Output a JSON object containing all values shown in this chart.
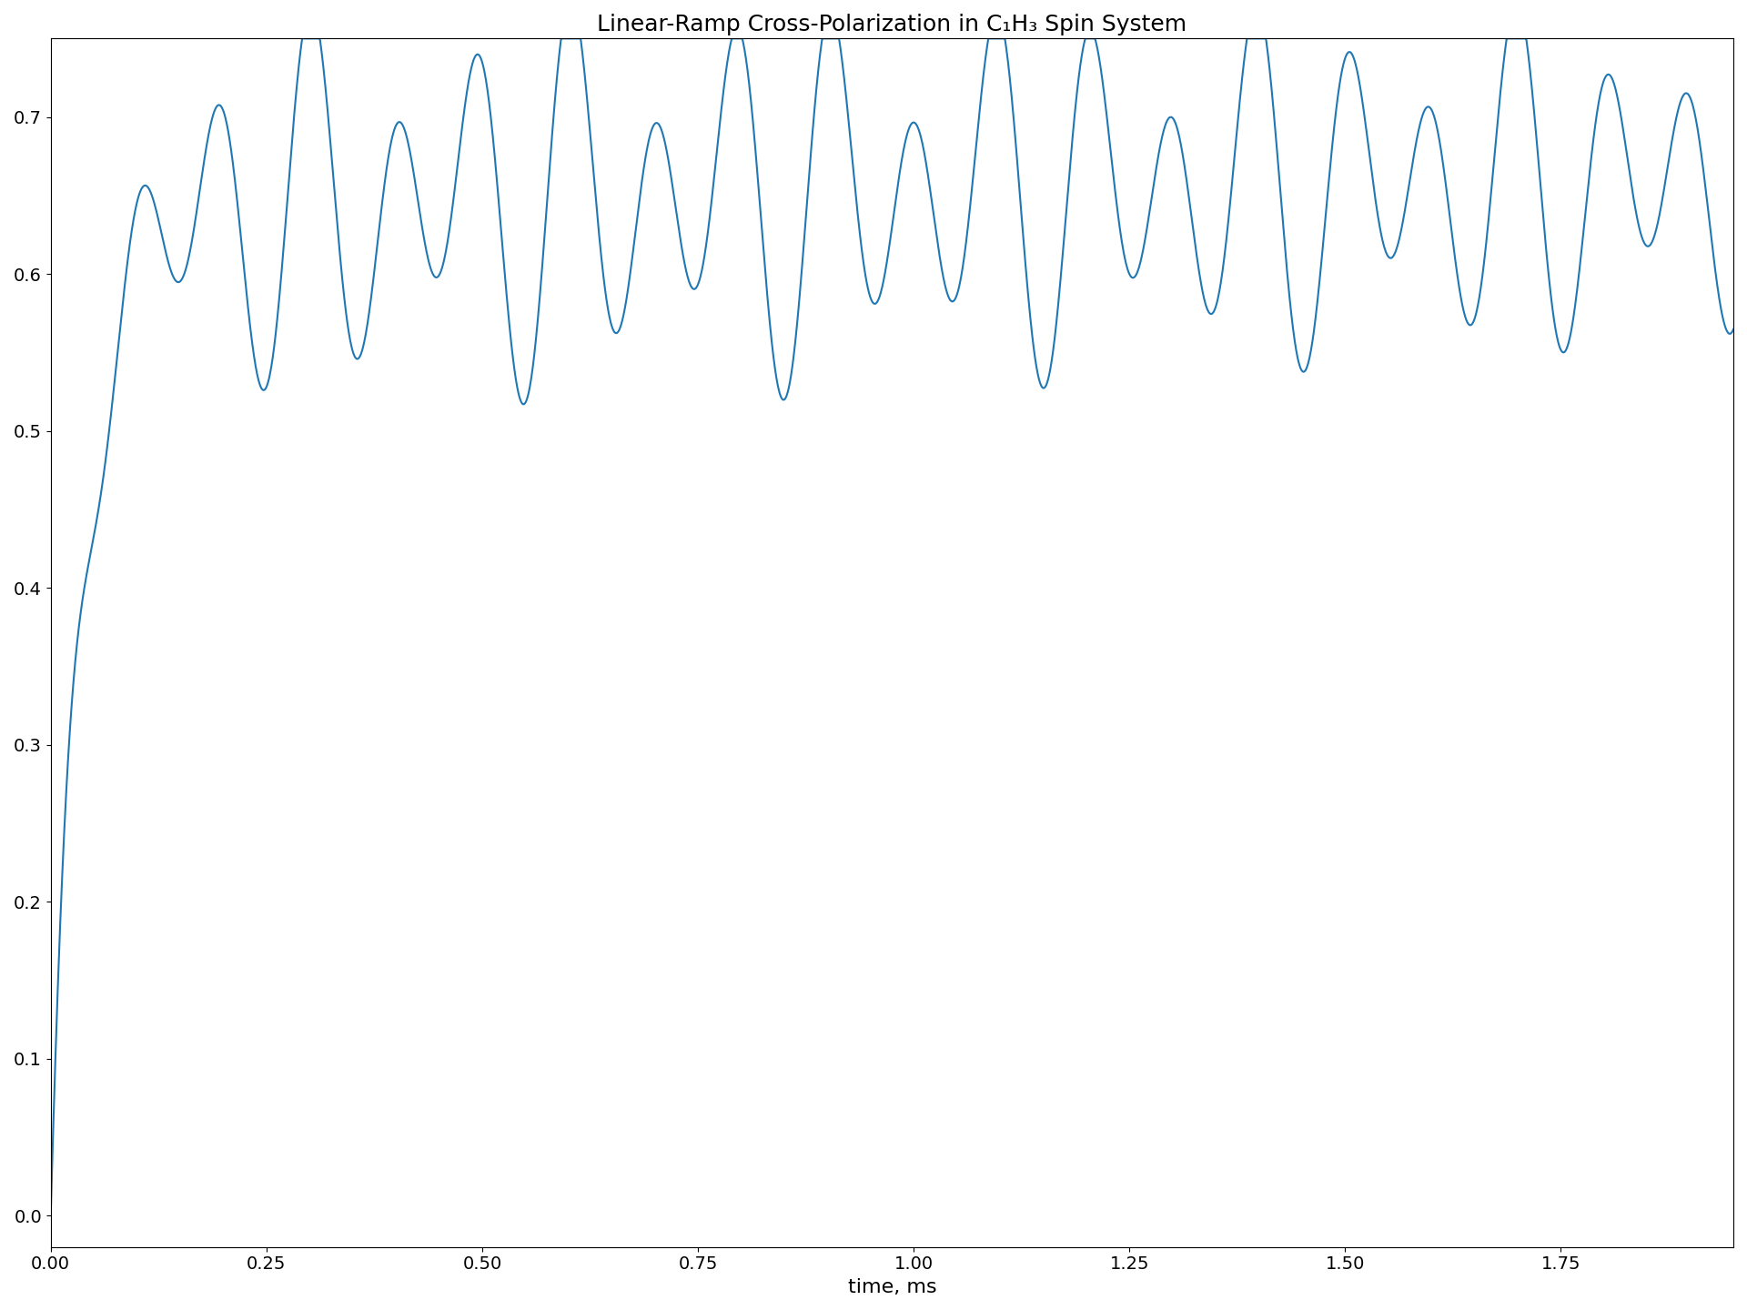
{
  "title": "Linear-Ramp Cross-Polarization in C₁H₃ Spin System",
  "xlabel": "time, ms",
  "ylabel": "",
  "line_color": "#1f77b4",
  "line_width": 1.5,
  "xlim": [
    0,
    1.95
  ],
  "ylim": [
    -0.02,
    0.75
  ],
  "yticks": [
    0.0,
    0.1,
    0.2,
    0.3,
    0.4,
    0.5,
    0.6,
    0.7
  ],
  "xticks": [
    0.0,
    0.25,
    0.5,
    0.75,
    1.0,
    1.25,
    1.5,
    1.75
  ],
  "background_color": "#ffffff",
  "title_fontsize": 18,
  "label_fontsize": 16,
  "tick_fontsize": 14,
  "figsize": [
    19.2,
    14.4
  ],
  "dpi": 100
}
